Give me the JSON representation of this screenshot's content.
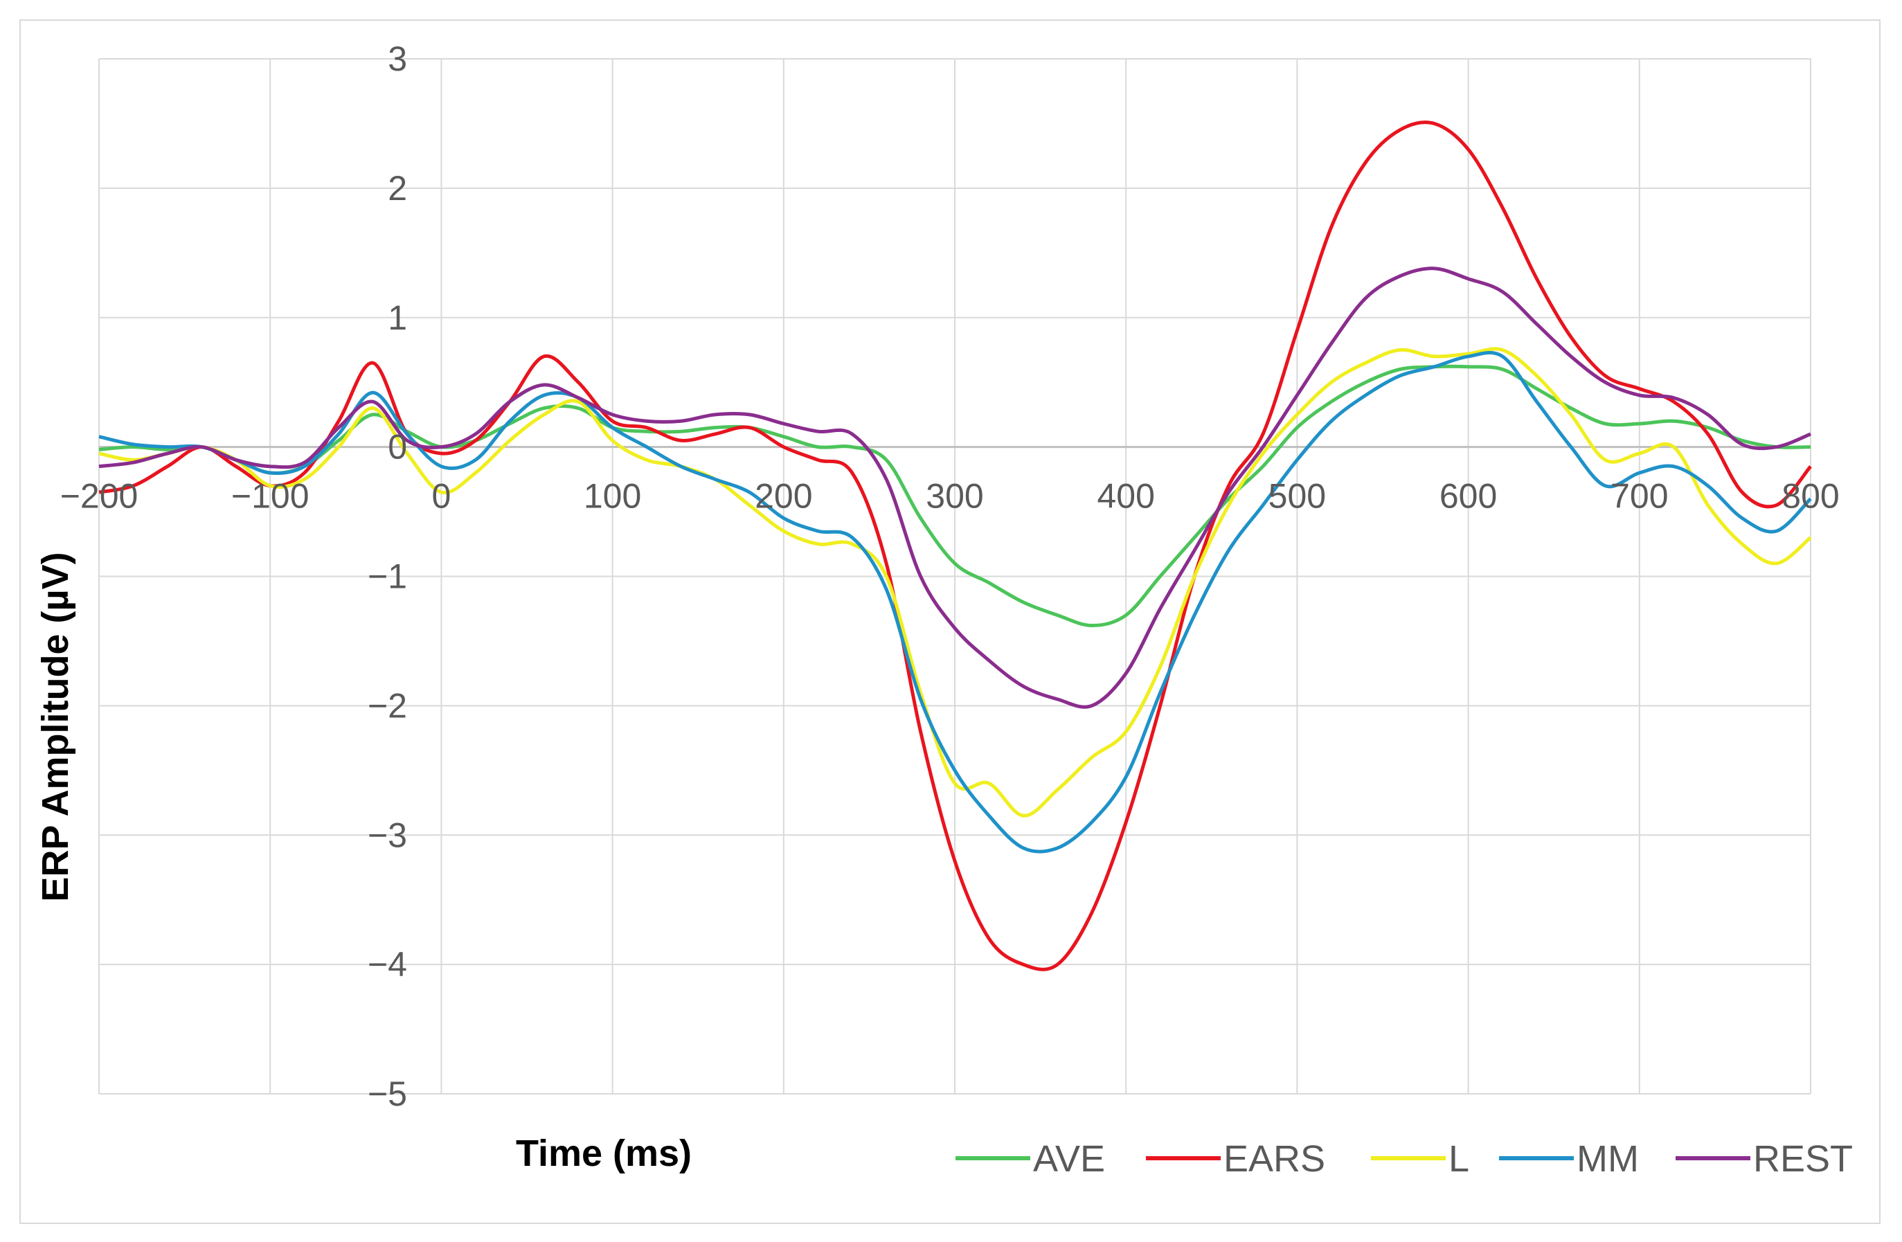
{
  "chart_data": {
    "type": "line",
    "title": "",
    "xlabel": "Time (ms)",
    "ylabel": "ERP Amplitude (µV)",
    "xlim": [
      -200,
      800
    ],
    "ylim": [
      -5,
      3
    ],
    "x_ticks": [
      -200,
      -100,
      0,
      100,
      200,
      300,
      400,
      500,
      600,
      700,
      800
    ],
    "x_tick_labels": [
      "−200",
      "−100",
      "0",
      "100",
      "200",
      "300",
      "400",
      "500",
      "600",
      "700",
      "800"
    ],
    "y_ticks": [
      3,
      2,
      1,
      0,
      -1,
      -2,
      -3,
      -4,
      -5
    ],
    "y_tick_labels": [
      "3",
      "2",
      "1",
      "0",
      "−1",
      "−2",
      "−3",
      "−4",
      "−5"
    ],
    "grid": true,
    "legend_position": "bottom-right",
    "series": [
      {
        "name": "AVE",
        "color": "#4cc45a",
        "x": [
          -200,
          -180,
          -160,
          -140,
          -120,
          -100,
          -80,
          -60,
          -40,
          -20,
          0,
          20,
          40,
          60,
          80,
          100,
          120,
          140,
          160,
          180,
          200,
          220,
          240,
          260,
          280,
          300,
          320,
          340,
          360,
          380,
          400,
          420,
          440,
          460,
          480,
          500,
          520,
          540,
          560,
          580,
          600,
          620,
          640,
          660,
          680,
          700,
          720,
          740,
          760,
          780,
          800
        ],
        "values": [
          -0.02,
          0.0,
          -0.02,
          0.0,
          -0.1,
          -0.2,
          -0.15,
          0.05,
          0.25,
          0.12,
          0.0,
          0.05,
          0.18,
          0.3,
          0.3,
          0.15,
          0.12,
          0.12,
          0.15,
          0.15,
          0.08,
          0.0,
          0.0,
          -0.1,
          -0.55,
          -0.9,
          -1.05,
          -1.2,
          -1.3,
          -1.38,
          -1.3,
          -1.0,
          -0.7,
          -0.4,
          -0.15,
          0.15,
          0.35,
          0.5,
          0.6,
          0.62,
          0.62,
          0.6,
          0.45,
          0.3,
          0.18,
          0.18,
          0.2,
          0.15,
          0.05,
          0.0,
          0.0
        ]
      },
      {
        "name": "EARS",
        "color": "#e8141e",
        "x": [
          -200,
          -180,
          -160,
          -140,
          -120,
          -100,
          -80,
          -60,
          -40,
          -20,
          0,
          20,
          40,
          60,
          80,
          100,
          120,
          140,
          160,
          180,
          200,
          220,
          240,
          260,
          280,
          300,
          320,
          340,
          360,
          380,
          400,
          420,
          440,
          460,
          480,
          500,
          520,
          540,
          560,
          580,
          600,
          620,
          640,
          660,
          680,
          700,
          720,
          740,
          760,
          780,
          800
        ],
        "values": [
          -0.35,
          -0.3,
          -0.15,
          0.0,
          -0.15,
          -0.3,
          -0.2,
          0.2,
          0.65,
          0.1,
          -0.05,
          0.05,
          0.35,
          0.7,
          0.5,
          0.2,
          0.15,
          0.05,
          0.1,
          0.15,
          0.0,
          -0.1,
          -0.2,
          -0.9,
          -2.2,
          -3.2,
          -3.8,
          -4.0,
          -4.0,
          -3.6,
          -2.9,
          -2.0,
          -1.0,
          -0.3,
          0.1,
          0.9,
          1.7,
          2.2,
          2.45,
          2.5,
          2.3,
          1.85,
          1.3,
          0.85,
          0.55,
          0.45,
          0.35,
          0.1,
          -0.35,
          -0.45,
          -0.15
        ]
      },
      {
        "name": "L",
        "color": "#f0ee1e",
        "x": [
          -200,
          -180,
          -160,
          -140,
          -120,
          -100,
          -80,
          -60,
          -40,
          -20,
          0,
          20,
          40,
          60,
          80,
          100,
          120,
          140,
          160,
          180,
          200,
          220,
          240,
          260,
          280,
          300,
          320,
          340,
          360,
          380,
          400,
          420,
          440,
          460,
          480,
          500,
          520,
          540,
          560,
          580,
          600,
          620,
          640,
          660,
          680,
          700,
          720,
          740,
          760,
          780,
          800
        ],
        "values": [
          -0.05,
          -0.1,
          -0.05,
          0.0,
          -0.1,
          -0.3,
          -0.25,
          0.0,
          0.3,
          -0.05,
          -0.35,
          -0.2,
          0.05,
          0.25,
          0.35,
          0.05,
          -0.1,
          -0.15,
          -0.25,
          -0.45,
          -0.65,
          -0.75,
          -0.75,
          -1.0,
          -1.9,
          -2.6,
          -2.6,
          -2.85,
          -2.65,
          -2.4,
          -2.2,
          -1.7,
          -1.0,
          -0.45,
          -0.05,
          0.25,
          0.5,
          0.65,
          0.75,
          0.7,
          0.72,
          0.75,
          0.55,
          0.25,
          -0.1,
          -0.05,
          0.0,
          -0.45,
          -0.75,
          -0.9,
          -0.7
        ]
      },
      {
        "name": "MM",
        "color": "#1f91c8",
        "x": [
          -200,
          -180,
          -160,
          -140,
          -120,
          -100,
          -80,
          -60,
          -40,
          -20,
          0,
          20,
          40,
          60,
          80,
          100,
          120,
          140,
          160,
          180,
          200,
          220,
          240,
          260,
          280,
          300,
          320,
          340,
          360,
          380,
          400,
          420,
          440,
          460,
          480,
          500,
          520,
          540,
          560,
          580,
          600,
          620,
          640,
          660,
          680,
          700,
          720,
          740,
          760,
          780,
          800
        ],
        "values": [
          0.08,
          0.02,
          0.0,
          0.0,
          -0.1,
          -0.2,
          -0.15,
          0.1,
          0.42,
          0.1,
          -0.15,
          -0.1,
          0.2,
          0.4,
          0.38,
          0.15,
          0.0,
          -0.15,
          -0.25,
          -0.35,
          -0.55,
          -0.65,
          -0.7,
          -1.1,
          -1.95,
          -2.5,
          -2.85,
          -3.1,
          -3.1,
          -2.9,
          -2.55,
          -1.9,
          -1.3,
          -0.8,
          -0.45,
          -0.1,
          0.2,
          0.4,
          0.55,
          0.62,
          0.7,
          0.7,
          0.35,
          0.0,
          -0.3,
          -0.2,
          -0.15,
          -0.3,
          -0.55,
          -0.65,
          -0.4
        ]
      },
      {
        "name": "REST",
        "color": "#8a2d8e",
        "x": [
          -200,
          -180,
          -160,
          -140,
          -120,
          -100,
          -80,
          -60,
          -40,
          -20,
          0,
          20,
          40,
          60,
          80,
          100,
          120,
          140,
          160,
          180,
          200,
          220,
          240,
          260,
          280,
          300,
          320,
          340,
          360,
          380,
          400,
          420,
          440,
          460,
          480,
          500,
          520,
          540,
          560,
          580,
          600,
          620,
          640,
          660,
          680,
          700,
          720,
          740,
          760,
          780,
          800
        ],
        "values": [
          -0.15,
          -0.12,
          -0.05,
          0.0,
          -0.1,
          -0.15,
          -0.12,
          0.15,
          0.35,
          0.05,
          0.0,
          0.1,
          0.35,
          0.48,
          0.38,
          0.25,
          0.2,
          0.2,
          0.25,
          0.25,
          0.18,
          0.12,
          0.1,
          -0.25,
          -1.0,
          -1.4,
          -1.65,
          -1.85,
          -1.95,
          -2.0,
          -1.75,
          -1.25,
          -0.8,
          -0.35,
          0.0,
          0.4,
          0.8,
          1.15,
          1.32,
          1.38,
          1.3,
          1.2,
          0.95,
          0.7,
          0.5,
          0.4,
          0.38,
          0.25,
          0.02,
          0.0,
          0.1
        ]
      }
    ]
  }
}
